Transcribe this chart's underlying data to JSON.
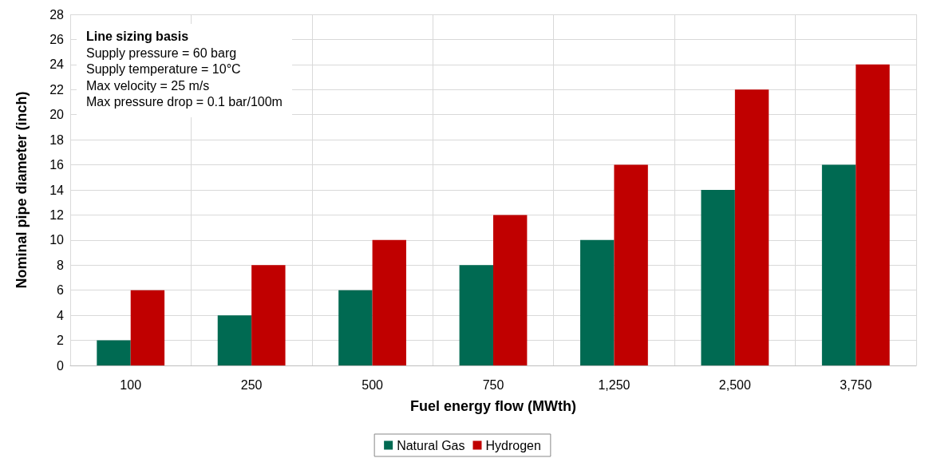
{
  "chart_data": {
    "type": "bar",
    "xlabel": "Fuel energy flow (MWth)",
    "ylabel": "Nominal pipe diameter (inch)",
    "categories": [
      "100",
      "250",
      "500",
      "750",
      "1,250",
      "2,500",
      "3,750"
    ],
    "series": [
      {
        "name": "Natural Gas",
        "color": "#006a52",
        "values": [
          2,
          4,
          6,
          8,
          10,
          14,
          16
        ]
      },
      {
        "name": "Hydrogen",
        "color": "#c00000",
        "values": [
          6,
          8,
          10,
          12,
          16,
          22,
          24
        ]
      }
    ],
    "ylim": [
      0,
      28
    ],
    "yticks": [
      0,
      2,
      4,
      6,
      8,
      10,
      12,
      14,
      16,
      18,
      20,
      22,
      24,
      26,
      28
    ],
    "grid": true,
    "legend": "bottom",
    "annotations": [
      "Line sizing basis",
      "Supply pressure = 60 barg",
      "Supply temperature = 10°C",
      "Max velocity = 25 m/s",
      "Max pressure drop = 0.1 bar/100m"
    ]
  }
}
